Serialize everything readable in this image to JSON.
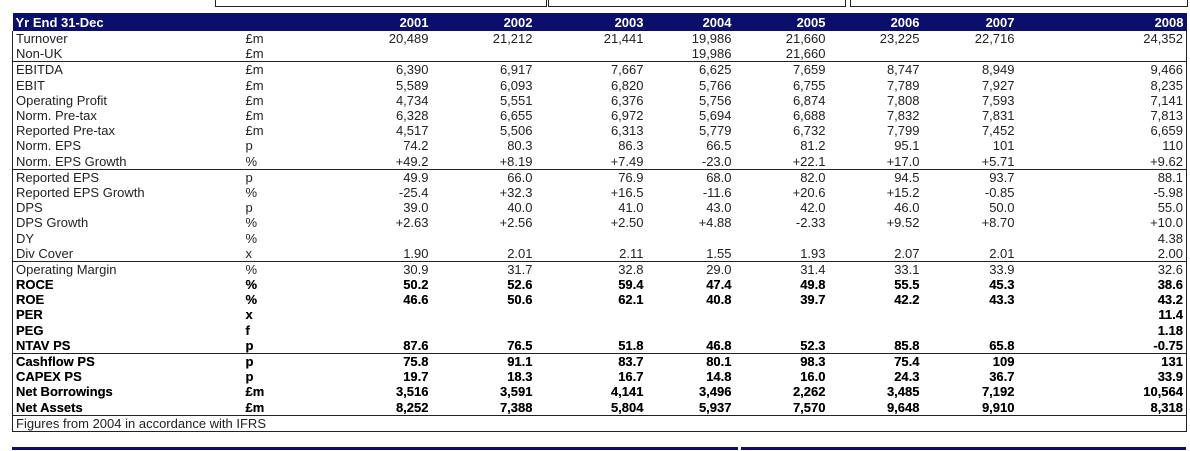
{
  "header": {
    "title": "Yr End 31-Dec",
    "years": [
      "2001",
      "2002",
      "2003",
      "2004",
      "2005",
      "2006",
      "2007",
      "2008"
    ]
  },
  "groups": [
    {
      "rows": [
        {
          "label": "Turnover",
          "unit": "£m",
          "values": [
            "20,489",
            "21,212",
            "21,441",
            "19,986",
            "21,660",
            "23,225",
            "22,716",
            "24,352"
          ]
        },
        {
          "label": "Non-UK",
          "unit": "£m",
          "values": [
            "",
            "",
            "",
            "19,986",
            "21,660",
            "",
            "",
            ""
          ]
        }
      ]
    },
    {
      "rows": [
        {
          "label": "EBITDA",
          "unit": "£m",
          "values": [
            "6,390",
            "6,917",
            "7,667",
            "6,625",
            "7,659",
            "8,747",
            "8,949",
            "9,466"
          ]
        },
        {
          "label": "EBIT",
          "unit": "£m",
          "values": [
            "5,589",
            "6,093",
            "6,820",
            "5,766",
            "6,755",
            "7,789",
            "7,927",
            "8,235"
          ]
        },
        {
          "label": "Operating Profit",
          "unit": "£m",
          "values": [
            "4,734",
            "5,551",
            "6,376",
            "5,756",
            "6,874",
            "7,808",
            "7,593",
            "7,141"
          ]
        },
        {
          "label": "Norm. Pre-tax",
          "unit": "£m",
          "values": [
            "6,328",
            "6,655",
            "6,972",
            "5,694",
            "6,688",
            "7,832",
            "7,831",
            "7,813"
          ]
        },
        {
          "label": "Reported Pre-tax",
          "unit": "£m",
          "values": [
            "4,517",
            "5,506",
            "6,313",
            "5,779",
            "6,732",
            "7,799",
            "7,452",
            "6,659"
          ]
        },
        {
          "label": "Norm. EPS",
          "unit": "p",
          "values": [
            "74.2",
            "80.3",
            "86.3",
            "66.5",
            "81.2",
            "95.1",
            "101",
            "110"
          ]
        },
        {
          "label": "Norm. EPS Growth",
          "unit": "%",
          "values": [
            "+49.2",
            "+8.19",
            "+7.49",
            "-23.0",
            "+22.1",
            "+17.0",
            "+5.71",
            "+9.62"
          ]
        }
      ]
    },
    {
      "rows": [
        {
          "label": "Reported EPS",
          "unit": "p",
          "values": [
            "49.9",
            "66.0",
            "76.9",
            "68.0",
            "82.0",
            "94.5",
            "93.7",
            "88.1"
          ]
        },
        {
          "label": "Reported EPS Growth",
          "unit": "%",
          "values": [
            "-25.4",
            "+32.3",
            "+16.5",
            "-11.6",
            "+20.6",
            "+15.2",
            "-0.85",
            "-5.98"
          ]
        },
        {
          "label": "DPS",
          "unit": "p",
          "values": [
            "39.0",
            "40.0",
            "41.0",
            "43.0",
            "42.0",
            "46.0",
            "50.0",
            "55.0"
          ]
        },
        {
          "label": "DPS Growth",
          "unit": "%",
          "values": [
            "+2.63",
            "+2.56",
            "+2.50",
            "+4.88",
            "-2.33",
            "+9.52",
            "+8.70",
            "+10.0"
          ]
        },
        {
          "label": "DY",
          "unit": "%",
          "values": [
            "",
            "",
            "",
            "",
            "",
            "",
            "",
            "4.38"
          ]
        },
        {
          "label": "Div Cover",
          "unit": "x",
          "values": [
            "1.90",
            "2.01",
            "2.11",
            "1.55",
            "1.93",
            "2.07",
            "2.01",
            "2.00"
          ]
        }
      ]
    },
    {
      "rows": [
        {
          "label": "Operating Margin",
          "unit": "%",
          "values": [
            "30.9",
            "31.7",
            "32.8",
            "29.0",
            "31.4",
            "33.1",
            "33.9",
            "32.6"
          ]
        },
        {
          "label": "ROCE",
          "unit": "%",
          "bold": true,
          "values": [
            "50.2",
            "52.6",
            "59.4",
            "47.4",
            "49.8",
            "55.5",
            "45.3",
            "38.6"
          ]
        },
        {
          "label": "ROE",
          "unit": "%",
          "bold": true,
          "values": [
            "46.6",
            "50.6",
            "62.1",
            "40.8",
            "39.7",
            "42.2",
            "43.3",
            "43.2"
          ]
        },
        {
          "label": "PER",
          "unit": "x",
          "bold": true,
          "values": [
            "",
            "",
            "",
            "",
            "",
            "",
            "",
            "11.4"
          ]
        },
        {
          "label": "PEG",
          "unit": "f",
          "bold": true,
          "values": [
            "",
            "",
            "",
            "",
            "",
            "",
            "",
            "1.18"
          ]
        },
        {
          "label": "NTAV PS",
          "unit": "p",
          "bold": true,
          "values": [
            "87.6",
            "76.5",
            "51.8",
            "46.8",
            "52.3",
            "85.8",
            "65.8",
            "-0.75"
          ]
        }
      ]
    },
    {
      "rows": [
        {
          "label": "Cashflow PS",
          "unit": "p",
          "bold": true,
          "values": [
            "75.8",
            "91.1",
            "83.7",
            "80.1",
            "98.3",
            "75.4",
            "109",
            "131"
          ]
        },
        {
          "label": "CAPEX PS",
          "unit": "p",
          "bold": true,
          "values": [
            "19.7",
            "18.3",
            "16.7",
            "14.8",
            "16.0",
            "24.3",
            "36.7",
            "33.9"
          ]
        },
        {
          "label": "Net Borrowings",
          "unit": "£m",
          "bold": true,
          "values": [
            "3,516",
            "3,591",
            "4,141",
            "3,496",
            "2,262",
            "3,485",
            "7,192",
            "10,564"
          ]
        },
        {
          "label": "Net Assets",
          "unit": "£m",
          "bold": true,
          "values": [
            "8,252",
            "7,388",
            "5,804",
            "5,937",
            "7,570",
            "9,648",
            "9,910",
            "8,318"
          ]
        }
      ]
    }
  ],
  "footer": {
    "note": "Figures from 2004 in accordance with IFRS"
  },
  "colors": {
    "header_bg": "#0b0f6b",
    "header_text": "#ffffff"
  }
}
